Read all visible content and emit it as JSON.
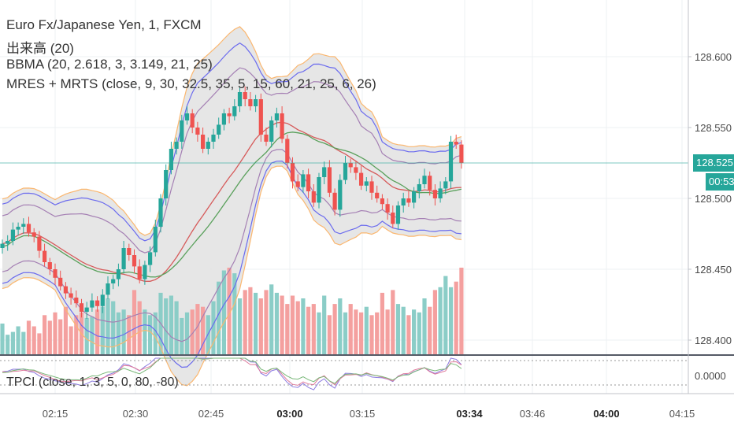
{
  "header": {
    "lines": [
      "Euro Fx/Japanese Yen, 1, FXCM",
      "出来高 (20)",
      "BBMA (20, 2.618, 3, 3.149, 21, 25)",
      "MRES + MRTS (close, 9, 30, 32.5, 35, 5, 15, 60, 21, 25, 6, 26)"
    ],
    "oscillator_label": "TPCI (close, 1, 3, 5, 0, 80, -80)"
  },
  "price_axis": {
    "ticks": [
      "128.600",
      "128.550",
      "128.500",
      "128.450",
      "128.400"
    ],
    "current_price_label": "128.525",
    "countdown_label": "00:53"
  },
  "oscillator_axis": {
    "ticks": [
      "0.0000"
    ]
  },
  "time_axis": {
    "ticks": [
      "02:15",
      "02:30",
      "02:45",
      "03:00",
      "03:15",
      "03:34",
      "03:46",
      "04:00",
      "04:15"
    ],
    "bold_ticks": [
      "03:00",
      "03:34",
      "04:00"
    ]
  },
  "colors": {
    "up": "#26a69a",
    "down": "#ef5350",
    "up_volume": "#8bcdc7",
    "down_volume": "#f4a09f",
    "band_fill": "#e3e3e3",
    "outer_band": "#fbb76f",
    "inner_band": "#6b6bee",
    "mid_band": "#a580b4",
    "ma_fast": "#d65a5a",
    "ma_slow": "#59a05b",
    "price_line": "#26a69a"
  },
  "chart_data": {
    "type": "candlestick",
    "symbol": "Euro Fx/Japanese Yen",
    "interval_minutes": 1,
    "source": "FXCM",
    "x": [
      "02:07",
      "02:08",
      "02:09",
      "02:10",
      "02:11",
      "02:12",
      "02:13",
      "02:14",
      "02:15",
      "02:16",
      "02:17",
      "02:18",
      "02:19",
      "02:20",
      "02:21",
      "02:22",
      "02:23",
      "02:24",
      "02:25",
      "02:26",
      "02:27",
      "02:28",
      "02:29",
      "02:30",
      "02:31",
      "02:32",
      "02:33",
      "02:34",
      "02:35",
      "02:36",
      "02:37",
      "02:38",
      "02:39",
      "02:40",
      "02:41",
      "02:42",
      "02:43",
      "02:44",
      "02:45",
      "02:46",
      "02:47",
      "02:48",
      "02:49",
      "02:50",
      "02:51",
      "02:52",
      "02:53",
      "02:54",
      "02:55",
      "02:56",
      "02:57",
      "02:58",
      "02:59",
      "03:00",
      "03:01",
      "03:02",
      "03:03",
      "03:04",
      "03:05",
      "03:06",
      "03:07",
      "03:08",
      "03:09",
      "03:10",
      "03:11",
      "03:12",
      "03:13",
      "03:14",
      "03:15",
      "03:16",
      "03:17",
      "03:18",
      "03:19",
      "03:20",
      "03:21",
      "03:22",
      "03:23",
      "03:24",
      "03:25",
      "03:26",
      "03:27",
      "03:28",
      "03:29",
      "03:30",
      "03:31",
      "03:32",
      "03:33",
      "03:34"
    ],
    "open": [
      128.465,
      128.468,
      128.47,
      128.478,
      128.48,
      128.482,
      128.476,
      128.473,
      128.463,
      128.455,
      128.45,
      128.444,
      128.438,
      128.433,
      128.43,
      128.426,
      128.42,
      128.423,
      128.428,
      128.424,
      128.432,
      128.44,
      128.443,
      128.45,
      128.465,
      128.46,
      128.452,
      128.443,
      128.453,
      128.462,
      128.48,
      128.5,
      128.52,
      128.535,
      128.54,
      128.555,
      128.56,
      128.55,
      128.545,
      128.535,
      128.54,
      128.545,
      128.552,
      128.56,
      128.558,
      128.565,
      128.575,
      128.57,
      128.565,
      128.57,
      128.545,
      128.54,
      128.555,
      128.56,
      128.542,
      128.525,
      128.512,
      128.508,
      128.517,
      128.505,
      128.497,
      128.515,
      128.522,
      128.504,
      128.492,
      128.513,
      128.525,
      128.522,
      128.518,
      128.509,
      128.512,
      128.504,
      128.5,
      128.496,
      128.49,
      128.482,
      128.495,
      128.5,
      128.497,
      128.505,
      128.51,
      128.516,
      128.506,
      128.5,
      128.507,
      128.512,
      128.54,
      128.538
    ],
    "close": [
      128.468,
      128.47,
      128.478,
      128.48,
      128.482,
      128.476,
      128.473,
      128.463,
      128.455,
      128.45,
      128.444,
      128.438,
      128.433,
      128.43,
      128.426,
      128.42,
      128.423,
      128.428,
      128.424,
      128.432,
      128.44,
      128.443,
      128.45,
      128.465,
      128.46,
      128.452,
      128.443,
      128.453,
      128.462,
      128.48,
      128.5,
      128.52,
      128.535,
      128.54,
      128.555,
      128.56,
      128.55,
      128.545,
      128.535,
      128.54,
      128.545,
      128.552,
      128.56,
      128.558,
      128.565,
      128.575,
      128.57,
      128.565,
      128.57,
      128.545,
      128.54,
      128.555,
      128.56,
      128.542,
      128.525,
      128.512,
      128.508,
      128.517,
      128.505,
      128.497,
      128.515,
      128.522,
      128.504,
      128.492,
      128.513,
      128.525,
      128.522,
      128.518,
      128.509,
      128.512,
      128.504,
      128.5,
      128.496,
      128.49,
      128.482,
      128.495,
      128.5,
      128.497,
      128.505,
      128.51,
      128.516,
      128.506,
      128.5,
      128.507,
      128.512,
      128.54,
      128.538,
      128.525
    ],
    "volume": [
      22,
      14,
      16,
      20,
      16,
      24,
      20,
      15,
      28,
      24,
      30,
      25,
      34,
      20,
      28,
      30,
      26,
      27,
      32,
      34,
      40,
      38,
      30,
      32,
      28,
      46,
      38,
      32,
      28,
      30,
      44,
      40,
      42,
      38,
      26,
      30,
      32,
      36,
      34,
      28,
      38,
      52,
      60,
      62,
      58,
      40,
      46,
      48,
      44,
      40,
      46,
      50,
      44,
      42,
      36,
      42,
      38,
      40,
      34,
      36,
      30,
      42,
      28,
      36,
      40,
      30,
      36,
      32,
      30,
      34,
      28,
      30,
      44,
      32,
      46,
      36,
      34,
      28,
      32,
      30,
      40,
      34,
      46,
      48,
      56,
      48,
      52,
      62
    ],
    "indicators": [
      "BBMA (20, 2.618, 3, 3.149, 21, 25)",
      "MRES + MRTS (close, 9, 30, 32.5, 35, 5, 15, 60, 21, 25, 6, 26)",
      "TPCI (close, 1, 3, 5, 0, 80, -80)"
    ],
    "current_price": 128.525,
    "ylim": [
      128.39,
      128.64
    ]
  }
}
